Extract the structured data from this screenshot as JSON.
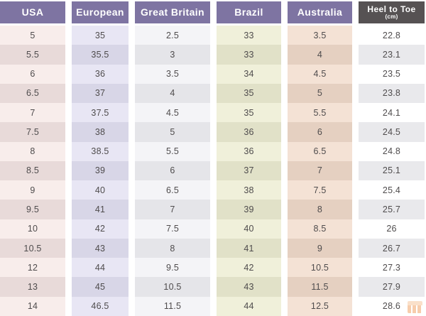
{
  "table": {
    "columns": [
      {
        "label": "USA",
        "header_bg": "#7e74a2",
        "odd_bg": "#f8edeb",
        "even_bg": "#e8dad9"
      },
      {
        "label": "European",
        "header_bg": "#7e74a2",
        "odd_bg": "#e8e6f4",
        "even_bg": "#d8d6e7"
      },
      {
        "label": "Great Britain",
        "header_bg": "#7e74a2",
        "odd_bg": "#f4f4f7",
        "even_bg": "#e5e5e9"
      },
      {
        "label": "Brazil",
        "header_bg": "#7e74a2",
        "odd_bg": "#f0f0da",
        "even_bg": "#e1e1c8"
      },
      {
        "label": "Australia",
        "header_bg": "#7e74a2",
        "odd_bg": "#f4e2d5",
        "even_bg": "#e5d0c1"
      },
      {
        "label": "Heel to Toe",
        "sublabel": "(cm)",
        "header_bg": "#565253",
        "odd_bg": "#ffffff",
        "even_bg": "#e9e9ec"
      }
    ],
    "rows": [
      [
        "5",
        "35",
        "2.5",
        "33",
        "3.5",
        "22.8"
      ],
      [
        "5.5",
        "35.5",
        "3",
        "33",
        "4",
        "23.1"
      ],
      [
        "6",
        "36",
        "3.5",
        "34",
        "4.5",
        "23.5"
      ],
      [
        "6.5",
        "37",
        "4",
        "35",
        "5",
        "23.8"
      ],
      [
        "7",
        "37.5",
        "4.5",
        "35",
        "5.5",
        "24.1"
      ],
      [
        "7.5",
        "38",
        "5",
        "36",
        "6",
        "24.5"
      ],
      [
        "8",
        "38.5",
        "5.5",
        "36",
        "6.5",
        "24.8"
      ],
      [
        "8.5",
        "39",
        "6",
        "37",
        "7",
        "25.1"
      ],
      [
        "9",
        "40",
        "6.5",
        "38",
        "7.5",
        "25.4"
      ],
      [
        "9.5",
        "41",
        "7",
        "39",
        "8",
        "25.7"
      ],
      [
        "10",
        "42",
        "7.5",
        "40",
        "8.5",
        "26"
      ],
      [
        "10.5",
        "43",
        "8",
        "41",
        "9",
        "26.7"
      ],
      [
        "12",
        "44",
        "9.5",
        "42",
        "10.5",
        "27.3"
      ],
      [
        "13",
        "45",
        "10.5",
        "43",
        "11.5",
        "27.9"
      ],
      [
        "14",
        "46.5",
        "11.5",
        "44",
        "12.5",
        "28.6"
      ]
    ],
    "text_color": "#4f4c4d",
    "header_text_color": "#ffffff",
    "watermark_color": "#f2a569"
  },
  "chart_data": {
    "type": "table",
    "columns": [
      "USA",
      "European",
      "Great Britain",
      "Brazil",
      "Australia",
      "Heel to Toe (cm)"
    ],
    "rows": [
      [
        5,
        35,
        2.5,
        33,
        3.5,
        22.8
      ],
      [
        5.5,
        35.5,
        3,
        33,
        4,
        23.1
      ],
      [
        6,
        36,
        3.5,
        34,
        4.5,
        23.5
      ],
      [
        6.5,
        37,
        4,
        35,
        5,
        23.8
      ],
      [
        7,
        37.5,
        4.5,
        35,
        5.5,
        24.1
      ],
      [
        7.5,
        38,
        5,
        36,
        6,
        24.5
      ],
      [
        8,
        38.5,
        5.5,
        36,
        6.5,
        24.8
      ],
      [
        8.5,
        39,
        6,
        37,
        7,
        25.1
      ],
      [
        9,
        40,
        6.5,
        38,
        7.5,
        25.4
      ],
      [
        9.5,
        41,
        7,
        39,
        8,
        25.7
      ],
      [
        10,
        42,
        7.5,
        40,
        8.5,
        26
      ],
      [
        10.5,
        43,
        8,
        41,
        9,
        26.7
      ],
      [
        12,
        44,
        9.5,
        42,
        10.5,
        27.3
      ],
      [
        13,
        45,
        10.5,
        43,
        11.5,
        27.9
      ],
      [
        14,
        46.5,
        11.5,
        44,
        12.5,
        28.6
      ]
    ],
    "layout": {
      "grid": false,
      "striped_rows": true,
      "column_tinted": true
    }
  }
}
